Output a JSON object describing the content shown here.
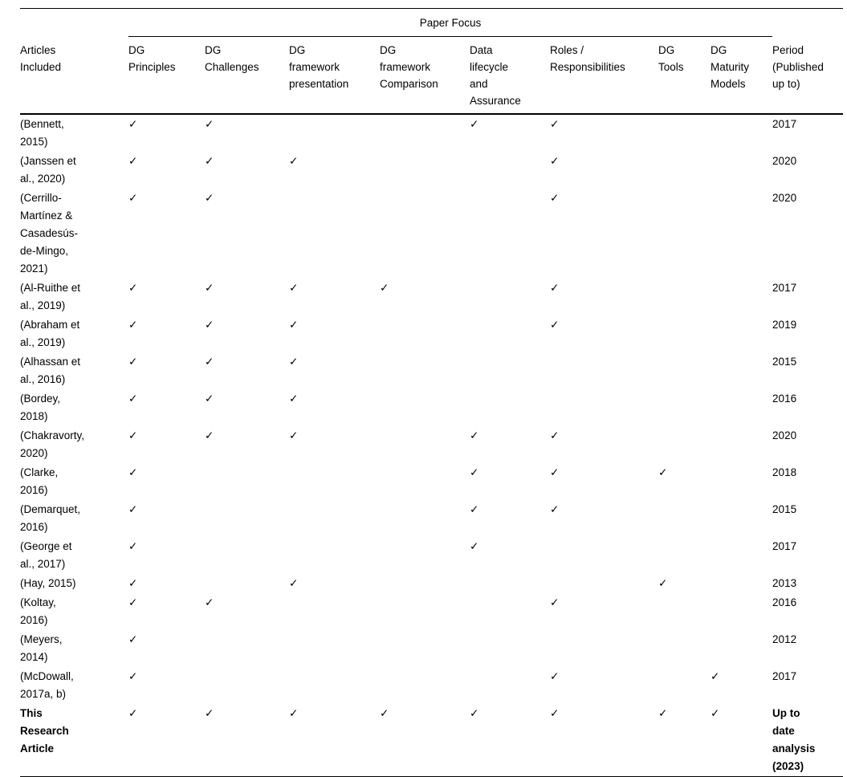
{
  "table": {
    "span_header": "Paper Focus",
    "checkmark": "✓",
    "columns": [
      {
        "id": "articles",
        "label": [
          "Articles",
          "Included"
        ]
      },
      {
        "id": "dg-principles",
        "label": [
          "DG",
          "Principles"
        ]
      },
      {
        "id": "dg-challenges",
        "label": [
          "DG",
          "Challenges"
        ]
      },
      {
        "id": "dg-framework-presentation",
        "label": [
          "DG",
          "framework",
          "presentation"
        ]
      },
      {
        "id": "dg-framework-comparison",
        "label": [
          "DG",
          "framework",
          "Comparison"
        ]
      },
      {
        "id": "data-lifecycle-assurance",
        "label": [
          "Data",
          "lifecycle",
          "and",
          "Assurance"
        ]
      },
      {
        "id": "roles-responsibilities",
        "label": [
          "Roles /",
          "Responsibilities"
        ]
      },
      {
        "id": "dg-tools",
        "label": [
          "DG",
          "Tools"
        ]
      },
      {
        "id": "dg-maturity-models",
        "label": [
          "DG",
          "Maturity",
          "Models"
        ]
      },
      {
        "id": "period",
        "label": [
          "Period",
          "(Published",
          "up to)"
        ]
      }
    ],
    "rows": [
      {
        "article": [
          "(Bennett,",
          "2015)"
        ],
        "checks": [
          1,
          1,
          0,
          0,
          1,
          1,
          0,
          0
        ],
        "period": [
          "2017"
        ],
        "bold": false
      },
      {
        "article": [
          "(Janssen et",
          "al., 2020)"
        ],
        "checks": [
          1,
          1,
          1,
          0,
          0,
          1,
          0,
          0
        ],
        "period": [
          "2020"
        ],
        "bold": false
      },
      {
        "article": [
          "(Cerrillo-",
          "Martínez &",
          "Casadesús-",
          "de-Mingo,",
          "2021)"
        ],
        "checks": [
          1,
          1,
          0,
          0,
          0,
          1,
          0,
          0
        ],
        "period": [
          "2020"
        ],
        "bold": false
      },
      {
        "article": [
          "(Al-Ruithe et",
          "al., 2019)"
        ],
        "checks": [
          1,
          1,
          1,
          1,
          0,
          1,
          0,
          0
        ],
        "period": [
          "2017"
        ],
        "bold": false
      },
      {
        "article": [
          "(Abraham et",
          "al., 2019)"
        ],
        "checks": [
          1,
          1,
          1,
          0,
          0,
          1,
          0,
          0
        ],
        "period": [
          "2019"
        ],
        "bold": false
      },
      {
        "article": [
          "(Alhassan et",
          "al., 2016)"
        ],
        "checks": [
          1,
          1,
          1,
          0,
          0,
          0,
          0,
          0
        ],
        "period": [
          "2015"
        ],
        "bold": false
      },
      {
        "article": [
          "(Bordey,",
          "2018)"
        ],
        "checks": [
          1,
          1,
          1,
          0,
          0,
          0,
          0,
          0
        ],
        "period": [
          "2016"
        ],
        "bold": false
      },
      {
        "article": [
          "(Chakravorty,",
          "2020)"
        ],
        "checks": [
          1,
          1,
          1,
          0,
          1,
          1,
          0,
          0
        ],
        "period": [
          "2020"
        ],
        "bold": false
      },
      {
        "article": [
          "(Clarke,",
          "2016)"
        ],
        "checks": [
          1,
          0,
          0,
          0,
          1,
          1,
          1,
          0
        ],
        "period": [
          "2018"
        ],
        "bold": false
      },
      {
        "article": [
          "(Demarquet,",
          "2016)"
        ],
        "checks": [
          1,
          0,
          0,
          0,
          1,
          1,
          0,
          0
        ],
        "period": [
          "2015"
        ],
        "bold": false
      },
      {
        "article": [
          "(George et",
          "al., 2017)"
        ],
        "checks": [
          1,
          0,
          0,
          0,
          1,
          0,
          0,
          0
        ],
        "period": [
          "2017"
        ],
        "bold": false
      },
      {
        "article": [
          "(Hay, 2015)"
        ],
        "checks": [
          1,
          0,
          1,
          0,
          0,
          0,
          1,
          0
        ],
        "period": [
          "2013"
        ],
        "bold": false
      },
      {
        "article": [
          "(Koltay,",
          "2016)"
        ],
        "checks": [
          1,
          1,
          0,
          0,
          0,
          1,
          0,
          0
        ],
        "period": [
          "2016"
        ],
        "bold": false
      },
      {
        "article": [
          "(Meyers,",
          "2014)"
        ],
        "checks": [
          1,
          0,
          0,
          0,
          0,
          0,
          0,
          0
        ],
        "period": [
          "2012"
        ],
        "bold": false
      },
      {
        "article": [
          "(McDowall,",
          "2017a, b)"
        ],
        "checks": [
          1,
          0,
          0,
          0,
          0,
          1,
          0,
          1
        ],
        "period": [
          "2017"
        ],
        "bold": false
      },
      {
        "article": [
          "This",
          "Research",
          "Article"
        ],
        "checks": [
          1,
          1,
          1,
          1,
          1,
          1,
          1,
          1
        ],
        "period": [
          "Up to",
          "date",
          "analysis",
          "(2023)"
        ],
        "bold": true
      }
    ]
  }
}
